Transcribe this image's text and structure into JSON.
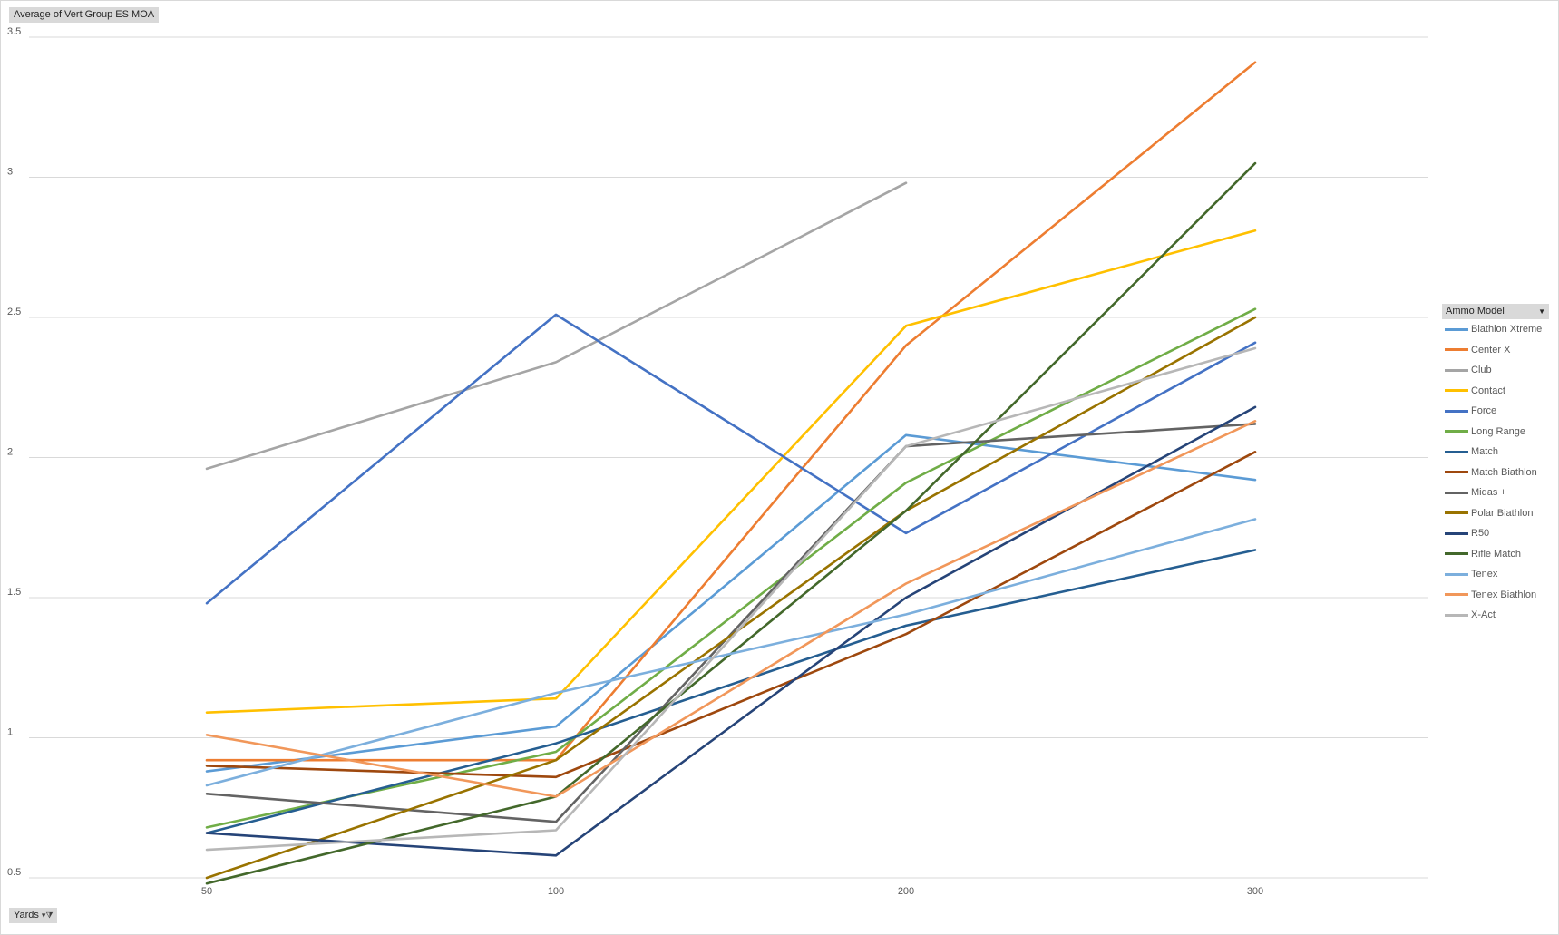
{
  "chart_data": {
    "type": "line",
    "title": "",
    "measure_label": "Average of Vert Group ES MOA",
    "axis_field_label": "Yards",
    "legend_title": "Ammo Model",
    "categories": [
      "50",
      "100",
      "200",
      "300"
    ],
    "ylim": [
      0.5,
      3.5
    ],
    "yticks": [
      "0.5",
      "1",
      "1.5",
      "2",
      "2.5",
      "3",
      "3.5"
    ],
    "grid": true,
    "legend_position": "right",
    "series": [
      {
        "name": "Biathlon Xtreme",
        "color": "#5B9BD5",
        "values": [
          0.88,
          1.04,
          2.08,
          1.92
        ]
      },
      {
        "name": "Center X",
        "color": "#ED7D31",
        "values": [
          0.92,
          0.92,
          2.4,
          3.41
        ]
      },
      {
        "name": "Club",
        "color": "#A5A5A5",
        "values": [
          1.96,
          2.34,
          2.98,
          null
        ]
      },
      {
        "name": "Contact",
        "color": "#FFC000",
        "values": [
          1.09,
          1.14,
          2.47,
          2.81
        ]
      },
      {
        "name": "Force",
        "color": "#4472C4",
        "values": [
          1.48,
          2.51,
          1.73,
          2.41
        ]
      },
      {
        "name": "Long Range",
        "color": "#70AD47",
        "values": [
          0.68,
          0.95,
          1.91,
          2.53
        ]
      },
      {
        "name": "Match",
        "color": "#255E91",
        "values": [
          0.66,
          0.98,
          1.4,
          1.67
        ]
      },
      {
        "name": "Match Biathlon",
        "color": "#9E480E",
        "values": [
          0.9,
          0.86,
          1.37,
          2.02
        ]
      },
      {
        "name": "Midas +",
        "color": "#636363",
        "values": [
          0.8,
          0.7,
          2.04,
          2.12
        ]
      },
      {
        "name": "Polar Biathlon",
        "color": "#997300",
        "values": [
          0.5,
          0.92,
          1.81,
          2.5
        ]
      },
      {
        "name": "R50",
        "color": "#264478",
        "values": [
          0.66,
          0.58,
          1.5,
          2.18
        ]
      },
      {
        "name": "Rifle Match",
        "color": "#43682B",
        "values": [
          0.48,
          0.79,
          1.81,
          3.05
        ]
      },
      {
        "name": "Tenex",
        "color": "#7CAFDD",
        "values": [
          0.83,
          1.16,
          1.44,
          1.78
        ]
      },
      {
        "name": "Tenex Biathlon",
        "color": "#F1975A",
        "values": [
          1.01,
          0.79,
          1.55,
          2.13
        ]
      },
      {
        "name": "X-Act",
        "color": "#B7B7B7",
        "values": [
          0.6,
          0.67,
          2.04,
          2.39
        ]
      }
    ]
  }
}
